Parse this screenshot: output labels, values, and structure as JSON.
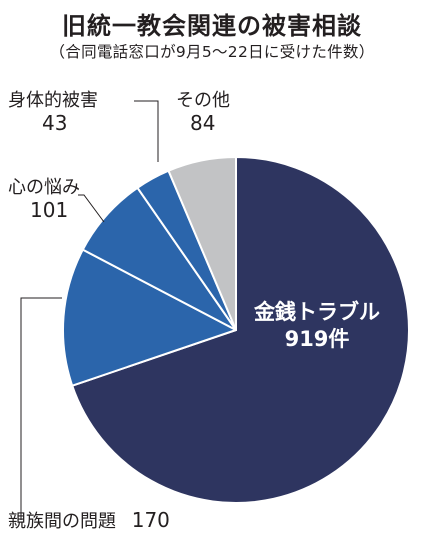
{
  "title": "旧統一教会関連の被害相談",
  "subtitle": "（合同電話窓口が9月5〜22日に受けた件数）",
  "chart_data": {
    "type": "pie",
    "title": "旧統一教会関連の被害相談",
    "subtitle": "（合同電話窓口が9月5〜22日に受けた件数）",
    "slices": [
      {
        "label": "金銭トラブル",
        "value": 919,
        "value_text": "919件",
        "color": "#2e3560"
      },
      {
        "label": "親族間の問題",
        "value": 170,
        "value_text": "170",
        "color": "#2b65ab"
      },
      {
        "label": "心の悩み",
        "value": 101,
        "value_text": "101",
        "color": "#2b65ab"
      },
      {
        "label": "身体的被害",
        "value": 43,
        "value_text": "43",
        "color": "#2b65ab"
      },
      {
        "label": "その他",
        "value": 84,
        "value_text": "84",
        "color": "#c2c3c5"
      }
    ],
    "start": "12 o'clock",
    "direction": "clockwise"
  }
}
